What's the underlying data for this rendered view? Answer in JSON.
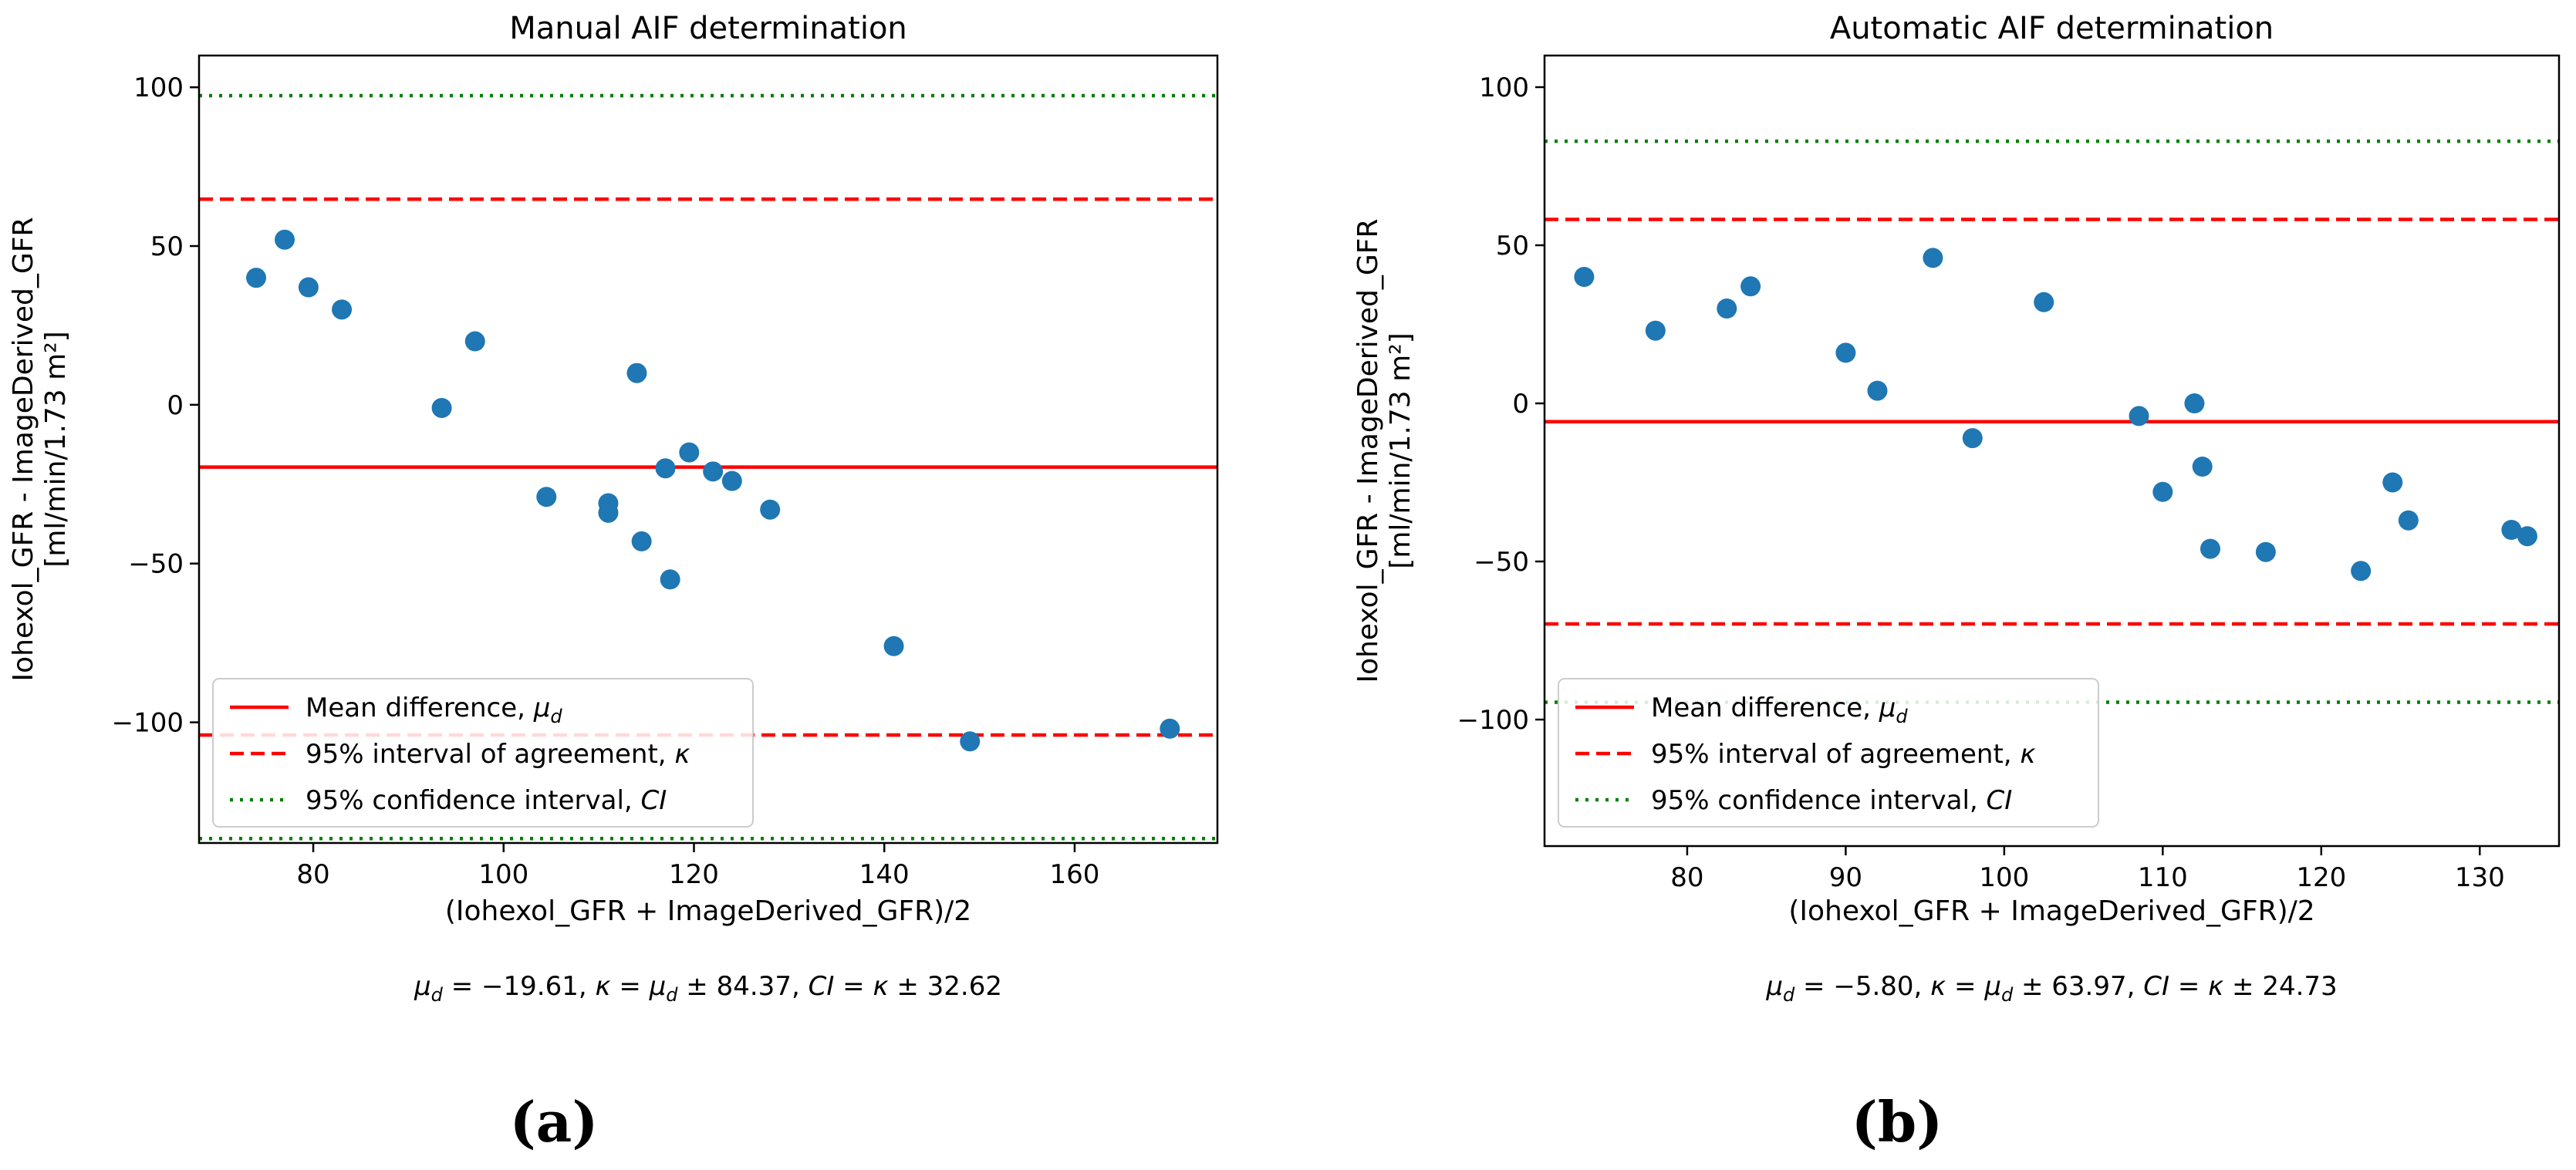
{
  "chart_data": [
    {
      "type": "scatter",
      "title": "Manual AIF determination",
      "xlabel": "(Iohexol_GFR + ImageDerived_GFR)/2",
      "ylabel": "Iohexol_GFR - ImageDerived_GFR",
      "ylabel_units": "[ml/min/1.73 m²]",
      "xlim": [
        68,
        175
      ],
      "ylim": [
        -138,
        110
      ],
      "xticks": [
        80,
        100,
        120,
        140,
        160
      ],
      "yticks": [
        100,
        50,
        0,
        -50,
        -100
      ],
      "tick_labels_x": [
        "80",
        "100",
        "120",
        "140",
        "160"
      ],
      "tick_labels_y": [
        "100",
        "50",
        "0",
        "−50",
        "−100"
      ],
      "points": {
        "x": [
          74,
          77,
          79.5,
          83,
          93.5,
          97,
          104.5,
          111,
          111,
          114,
          114.5,
          117,
          117.5,
          119.5,
          122,
          124,
          128,
          141,
          149,
          170
        ],
        "y": [
          40,
          52,
          37,
          30,
          -1,
          20,
          -29,
          -31,
          -34,
          10,
          -43,
          -20,
          -55,
          -15,
          -21,
          -24,
          -33,
          -76,
          -106,
          -102
        ]
      },
      "mean_difference": -19.61,
      "interval_of_agreement": [
        64.76,
        -103.98
      ],
      "confidence_interval": [
        97.38,
        -136.6
      ],
      "legend": {
        "position": "lower-left",
        "entries": [
          "Mean difference, ",
          "95% interval of agreement, ",
          "95% confidence interval, "
        ],
        "symbols": [
          "μ",
          "κ",
          "CI"
        ],
        "subscript": "d"
      },
      "stats_text": {
        "mu_value": "−19.61",
        "kappa_value": "84.37",
        "ci_value": "32.62"
      },
      "panel_label": "(a)"
    },
    {
      "type": "scatter",
      "title": "Automatic AIF determination",
      "xlabel": "(Iohexol_GFR + ImageDerived_GFR)/2",
      "ylabel": "Iohexol_GFR - ImageDerived_GFR",
      "ylabel_units": "[ml/min/1.73 m²]",
      "xlim": [
        71,
        135
      ],
      "ylim": [
        -140,
        110
      ],
      "xticks": [
        80,
        90,
        100,
        110,
        120,
        130
      ],
      "yticks": [
        100,
        50,
        0,
        -50,
        -100
      ],
      "tick_labels_x": [
        "80",
        "90",
        "100",
        "110",
        "120",
        "130"
      ],
      "tick_labels_y": [
        "100",
        "50",
        "0",
        "−50",
        "−100"
      ],
      "points": {
        "x": [
          73.5,
          78,
          82.5,
          84,
          90,
          92,
          95.5,
          98,
          102.5,
          108.5,
          110,
          112,
          112.5,
          113,
          116.5,
          122.5,
          124.5,
          125.5,
          132,
          133
        ],
        "y": [
          40,
          23,
          30,
          37,
          16,
          4,
          46,
          -11,
          32,
          -4,
          -28,
          0,
          -20,
          -46,
          -47,
          -53,
          -25,
          -37,
          -40,
          -42
        ]
      },
      "mean_difference": -5.8,
      "interval_of_agreement": [
        58.17,
        -69.77
      ],
      "confidence_interval": [
        82.9,
        -94.5
      ],
      "legend": {
        "position": "lower-left",
        "entries": [
          "Mean difference, ",
          "95% interval of agreement, ",
          "95% confidence interval, "
        ],
        "symbols": [
          "μ",
          "κ",
          "CI"
        ],
        "subscript": "d"
      },
      "stats_text": {
        "mu_value": "−5.80",
        "kappa_value": "63.97",
        "ci_value": "24.73"
      },
      "panel_label": "(b)"
    }
  ],
  "colors": {
    "points": "#1f77b4",
    "mean_line": "#ff0000",
    "agreement_line": "#ff0000",
    "confidence_line": "#008000",
    "axes": "#000000"
  }
}
